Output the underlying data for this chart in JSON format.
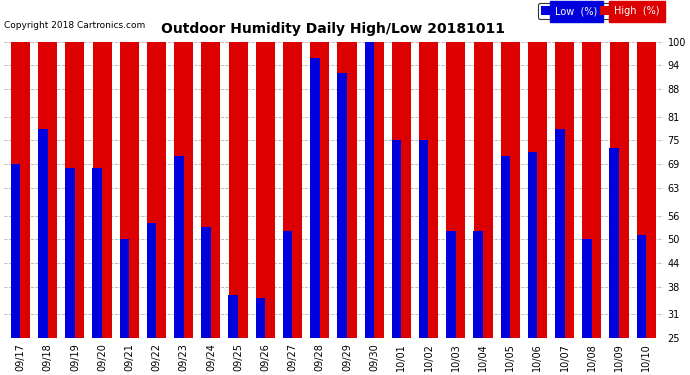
{
  "title": "Outdoor Humidity Daily High/Low 20181011",
  "copyright": "Copyright 2018 Cartronics.com",
  "legend_low": "Low  (%)",
  "legend_high": "High  (%)",
  "low_color": "#0000dd",
  "high_color": "#dd0000",
  "background_color": "#ffffff",
  "ylim": [
    25,
    100
  ],
  "yticks": [
    25,
    31,
    38,
    44,
    50,
    56,
    63,
    69,
    75,
    81,
    88,
    94,
    100
  ],
  "dates": [
    "09/17",
    "09/18",
    "09/19",
    "09/20",
    "09/21",
    "09/22",
    "09/23",
    "09/24",
    "09/25",
    "09/26",
    "09/27",
    "09/28",
    "09/29",
    "09/30",
    "10/01",
    "10/02",
    "10/03",
    "10/04",
    "10/05",
    "10/06",
    "10/07",
    "10/08",
    "10/09",
    "10/10"
  ],
  "high_vals": [
    100,
    100,
    100,
    100,
    100,
    100,
    100,
    100,
    100,
    100,
    100,
    100,
    100,
    100,
    100,
    100,
    100,
    100,
    100,
    100,
    100,
    100,
    100,
    100
  ],
  "low_vals": [
    69,
    78,
    68,
    68,
    50,
    54,
    71,
    53,
    36,
    35,
    52,
    96,
    92,
    100,
    75,
    75,
    52,
    52,
    71,
    72,
    78,
    50,
    73,
    51
  ]
}
